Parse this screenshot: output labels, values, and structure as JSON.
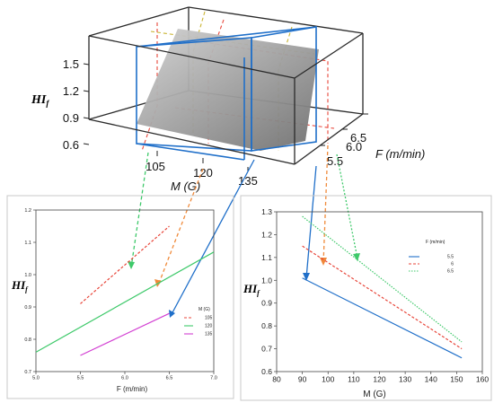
{
  "chart_data": [
    {
      "type": "surface3d",
      "zlabel": "HI",
      "zlabel_sub": "f",
      "xlabel": "M (G)",
      "ylabel": "F (m/min)",
      "z_ticks": [
        "1.5",
        "1.2",
        "0.9",
        "0.6"
      ],
      "x_ticks": [
        "105",
        "120",
        "135"
      ],
      "y_ticks": [
        "6.5",
        "6.0",
        "5.5"
      ],
      "zlim": [
        0.6,
        1.5
      ]
    },
    {
      "type": "line",
      "ylabel": "HI",
      "ylabel_sub": "f",
      "xlabel": "F (m/min)",
      "xlim": [
        5.0,
        7.0
      ],
      "ylim": [
        0.7,
        1.2
      ],
      "x_ticks": [
        "5.0",
        "5.5",
        "6.0",
        "6.5",
        "7.0"
      ],
      "y_ticks": [
        "0.7",
        "0.8",
        "0.9",
        "1.0",
        "1.1",
        "1.2"
      ],
      "legend_title": "M (G)",
      "legend_position": "bottom-right",
      "series": [
        {
          "name": "105",
          "color": "#e8463a",
          "dash": "dash",
          "x": [
            5.5,
            6.5
          ],
          "y": [
            0.91,
            1.15
          ]
        },
        {
          "name": "120",
          "color": "#3ec96a",
          "dash": "solid",
          "x": [
            5.0,
            7.0
          ],
          "y": [
            0.76,
            1.07
          ]
        },
        {
          "name": "135",
          "color": "#d23fd2",
          "dash": "solid",
          "x": [
            5.5,
            6.5
          ],
          "y": [
            0.75,
            0.88
          ]
        }
      ]
    },
    {
      "type": "line",
      "ylabel": "HI",
      "ylabel_sub": "f",
      "xlabel": "M (G)",
      "xlim": [
        80,
        160
      ],
      "ylim": [
        0.6,
        1.3
      ],
      "x_ticks": [
        "80",
        "90",
        "100",
        "110",
        "120",
        "130",
        "140",
        "150",
        "160"
      ],
      "y_ticks": [
        "0.6",
        "0.7",
        "0.8",
        "0.9",
        "1.0",
        "1.1",
        "1.2",
        "1.3"
      ],
      "legend_title": "F (m/min)",
      "legend_position": "top-right",
      "series": [
        {
          "name": "5.5",
          "color": "#1f6fc9",
          "dash": "solid",
          "x": [
            90,
            152
          ],
          "y": [
            1.01,
            0.66
          ]
        },
        {
          "name": "6",
          "color": "#e8463a",
          "dash": "dash",
          "x": [
            90,
            152
          ],
          "y": [
            1.15,
            0.7
          ]
        },
        {
          "name": "6.5",
          "color": "#3ec96a",
          "dash": "dot",
          "x": [
            90,
            152
          ],
          "y": [
            1.28,
            0.73
          ]
        }
      ]
    }
  ]
}
